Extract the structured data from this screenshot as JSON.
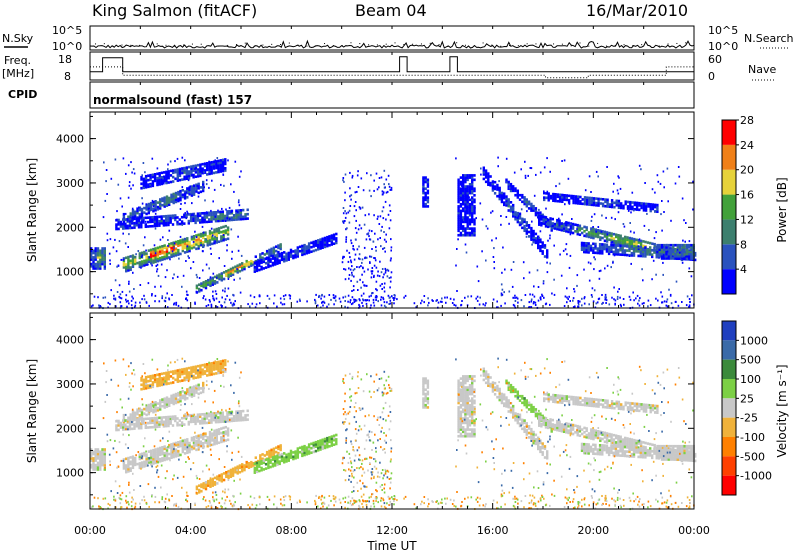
{
  "header": {
    "station": "King Salmon (fitACF)",
    "beam": "Beam 04",
    "date": "16/Mar/2010"
  },
  "top_panel": {
    "nsky_label": "N.Sky",
    "nsearch_label": "N.Search",
    "freq_label_1": "Freq.",
    "freq_label_2": "[MHz]",
    "nave_label": "Nave",
    "cpid_label": "CPID",
    "cpid_value": "normalsound (fast) 157",
    "noise_ticks": [
      "10^5",
      "10^0"
    ],
    "freq_ticks": [
      "18",
      "8"
    ],
    "nave_ticks": [
      "60",
      "0"
    ]
  },
  "chart_data": [
    {
      "type": "heatmap",
      "name": "power",
      "ylabel": "Slant Range [km]",
      "ylim": [
        180,
        4600
      ],
      "yticks": [
        "1000",
        "2000",
        "3000",
        "4000"
      ],
      "xlim": [
        0,
        24
      ],
      "colorbar_label": "Power [dB]",
      "colorbar_ticks": [
        "4",
        "8",
        "12",
        "16",
        "20",
        "24",
        "28"
      ],
      "colors": [
        "#0000ff",
        "#2a52be",
        "#3c7f6e",
        "#42a13a",
        "#e6d23a",
        "#f08018",
        "#ff0000"
      ],
      "grid": false,
      "legend": "colorbar right"
    },
    {
      "type": "heatmap",
      "name": "velocity",
      "ylabel": "Slant Range [km]",
      "ylim": [
        180,
        4600
      ],
      "yticks": [
        "1000",
        "2000",
        "3000",
        "4000"
      ],
      "xlim": [
        0,
        24
      ],
      "xticks": [
        "00:00",
        "04:00",
        "08:00",
        "12:00",
        "16:00",
        "20:00",
        "00:00"
      ],
      "xlabel": "Time UT",
      "colorbar_label": "Velocity [m s⁻¹]",
      "colorbar_ticks": [
        "1000",
        "500",
        "100",
        "25",
        "-25",
        "-100",
        "-500",
        "-1000"
      ],
      "colors": [
        "#1f3fbf",
        "#3a6aa8",
        "#3b8a3b",
        "#7cd045",
        "#c8c8c8",
        "#f0b23a",
        "#ff8000",
        "#ff4000",
        "#ff0000"
      ],
      "grid": false,
      "legend": "colorbar right"
    }
  ]
}
